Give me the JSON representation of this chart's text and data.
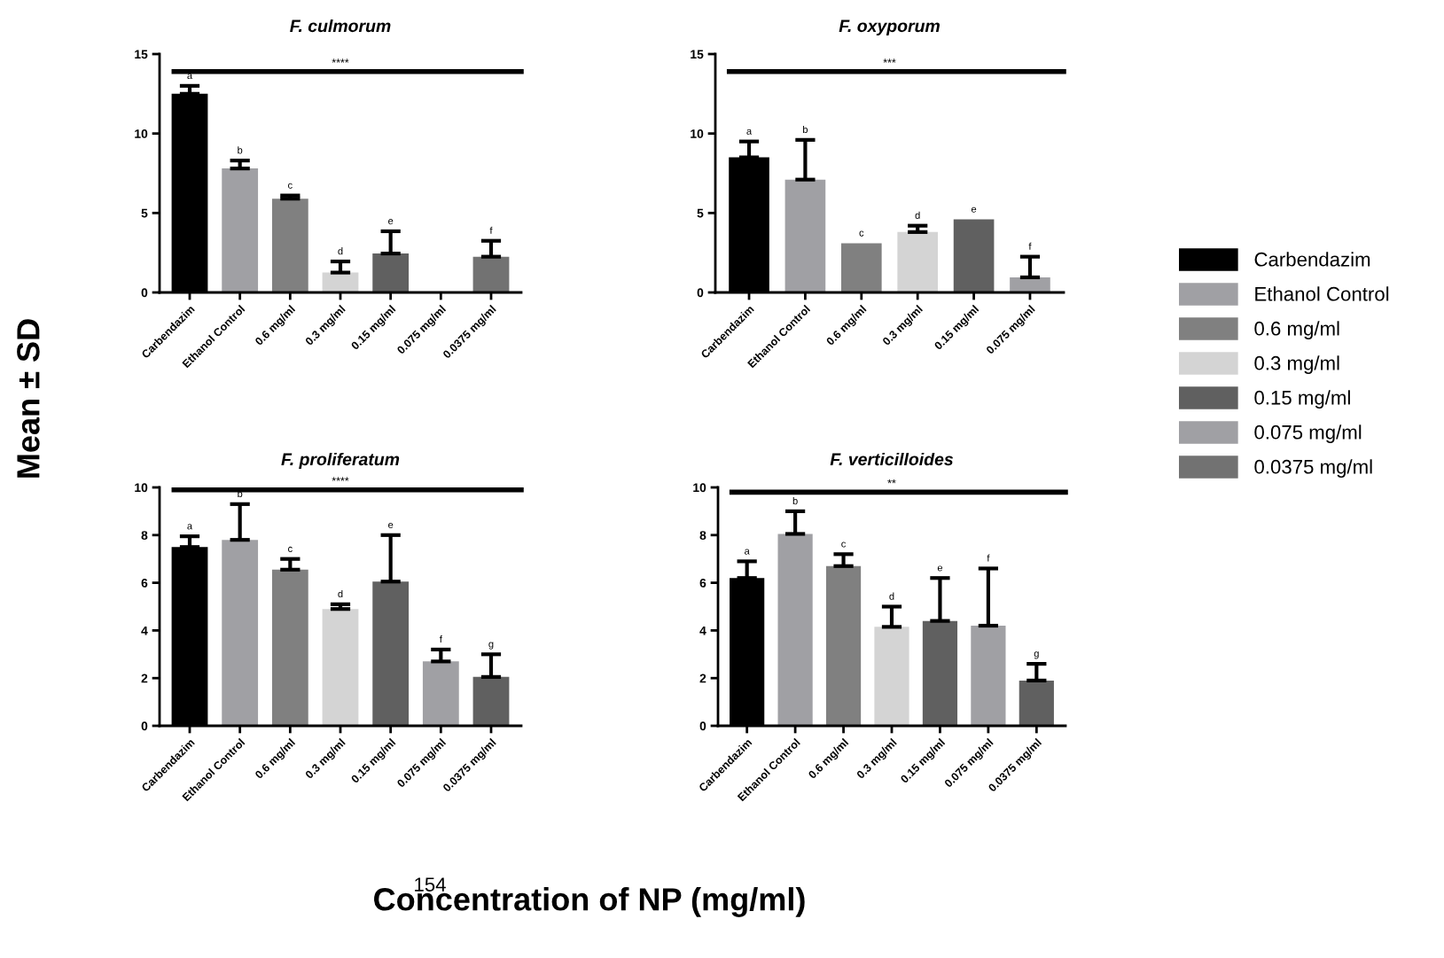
{
  "chart_data": [
    {
      "type": "bar",
      "title": "F. culmorum",
      "xlabel": "Concentration of NP (mg/ml)",
      "ylabel": "Mean ± SD",
      "categories": [
        "Carbendazim",
        "Ethanol Control",
        "0.6 mg/ml",
        "0.3 mg/ml",
        "0.15 mg/ml",
        "0.075 mg/ml",
        "0.0375 mg/ml"
      ],
      "values": [
        12.5,
        7.8,
        5.9,
        1.25,
        2.45,
        0,
        2.25
      ],
      "errors": [
        0.5,
        0.5,
        0.2,
        0.7,
        1.4,
        null,
        1.0
      ],
      "colors": [
        "#000000",
        "#a0a0a4",
        "#808080",
        "#d4d4d4",
        "#606060",
        "#a0a0a4",
        "#727272"
      ],
      "ylim": [
        0,
        15
      ],
      "yticks": [
        0,
        5,
        10,
        15
      ],
      "grid": false,
      "legend": "right",
      "ref_lines": [
        {
          "axis": "y",
          "value": 13.9,
          "label": "****"
        }
      ],
      "annotations": [
        {
          "text": "a",
          "x": "Carbendazim",
          "y": 13.0
        },
        {
          "text": "b",
          "x": "Ethanol Control",
          "y": 8.3
        },
        {
          "text": "c",
          "x": "0.6 mg/ml",
          "y": 6.1
        },
        {
          "text": "d",
          "x": "0.3 mg/ml",
          "y": 1.95
        },
        {
          "text": "e",
          "x": "0.15 mg/ml",
          "y": 3.85
        },
        {
          "text": "f",
          "x": "0.0375 mg/ml",
          "y": 3.25
        }
      ]
    },
    {
      "type": "bar",
      "title": "F. oxyporum",
      "categories": [
        "Carbendazim",
        "Ethanol Control",
        "0.6 mg/ml",
        "0.3 mg/ml",
        "0.15 mg/ml",
        "0.075 mg/ml"
      ],
      "values": [
        8.5,
        7.1,
        3.1,
        3.8,
        4.6,
        0.95
      ],
      "errors": [
        1.0,
        2.5,
        null,
        0.4,
        null,
        1.3
      ],
      "colors": [
        "#000000",
        "#a0a0a4",
        "#808080",
        "#d4d4d4",
        "#606060",
        "#a0a0a4"
      ],
      "ylim": [
        0,
        15
      ],
      "yticks": [
        0,
        5,
        10,
        15
      ],
      "grid": false,
      "ref_lines": [
        {
          "axis": "y",
          "value": 13.9,
          "label": "***"
        }
      ],
      "annotations": [
        {
          "text": "a",
          "x": "Carbendazim",
          "y": 9.5
        },
        {
          "text": "b",
          "x": "Ethanol Control",
          "y": 9.6
        },
        {
          "text": "c",
          "x": "0.6 mg/ml",
          "y": 3.1
        },
        {
          "text": "d",
          "x": "0.3 mg/ml",
          "y": 4.2
        },
        {
          "text": "e",
          "x": "0.15 mg/ml",
          "y": 4.6
        },
        {
          "text": "f",
          "x": "0.075 mg/ml",
          "y": 2.25
        }
      ]
    },
    {
      "type": "bar",
      "title": "F. proliferatum",
      "categories": [
        "Carbendazim",
        "Ethanol Control",
        "0.6 mg/ml",
        "0.3 mg/ml",
        "0.15 mg/ml",
        "0.075 mg/ml",
        "0.0375 mg/ml"
      ],
      "values": [
        7.5,
        7.8,
        6.55,
        4.9,
        6.05,
        2.7,
        2.05
      ],
      "errors": [
        0.45,
        1.5,
        0.45,
        0.2,
        1.95,
        0.5,
        0.95
      ],
      "colors": [
        "#000000",
        "#a0a0a4",
        "#808080",
        "#d4d4d4",
        "#606060",
        "#a0a0a4",
        "#606060"
      ],
      "ylim": [
        0,
        10
      ],
      "yticks": [
        0,
        2,
        4,
        6,
        8,
        10
      ],
      "grid": false,
      "ref_lines": [
        {
          "axis": "y",
          "value": 9.9,
          "label": "****"
        }
      ],
      "annotations": [
        {
          "text": "a",
          "x": "Carbendazim",
          "y": 7.95
        },
        {
          "text": "b",
          "x": "Ethanol Control",
          "y": 9.3
        },
        {
          "text": "c",
          "x": "0.6 mg/ml",
          "y": 7.0
        },
        {
          "text": "d",
          "x": "0.3 mg/ml",
          "y": 5.1
        },
        {
          "text": "e",
          "x": "0.15 mg/ml",
          "y": 8.0
        },
        {
          "text": "f",
          "x": "0.075 mg/ml",
          "y": 3.2
        },
        {
          "text": "g",
          "x": "0.0375 mg/ml",
          "y": 3.0
        },
        "154"
      ]
    },
    {
      "type": "bar",
      "title": "F. verticilloides",
      "categories": [
        "Carbendazim",
        "Ethanol Control",
        "0.6 mg/ml",
        "0.3 mg/ml",
        "0.15 mg/ml",
        "0.075 mg/ml",
        "0.0375 mg/ml"
      ],
      "values": [
        6.2,
        8.05,
        6.7,
        4.15,
        4.4,
        4.2,
        1.9
      ],
      "errors": [
        0.7,
        0.95,
        0.5,
        0.85,
        1.8,
        2.4,
        0.7
      ],
      "colors": [
        "#000000",
        "#a0a0a4",
        "#808080",
        "#d4d4d4",
        "#606060",
        "#a0a0a4",
        "#606060"
      ],
      "ylim": [
        0,
        10
      ],
      "yticks": [
        0,
        2,
        4,
        6,
        8,
        10
      ],
      "grid": false,
      "ref_lines": [
        {
          "axis": "y",
          "value": 9.8,
          "label": "**"
        }
      ],
      "annotations": [
        {
          "text": "a",
          "x": "Carbendazim",
          "y": 6.9
        },
        {
          "text": "b",
          "x": "Ethanol Control",
          "y": 9.0
        },
        {
          "text": "c",
          "x": "0.6 mg/ml",
          "y": 7.2
        },
        {
          "text": "d",
          "x": "0.3 mg/ml",
          "y": 5.0
        },
        {
          "text": "e",
          "x": "0.15 mg/ml",
          "y": 6.2
        },
        {
          "text": "f",
          "x": "0.075 mg/ml",
          "y": 6.6
        },
        {
          "text": "g",
          "x": "0.0375 mg/ml",
          "y": 2.6
        }
      ]
    }
  ]
}
